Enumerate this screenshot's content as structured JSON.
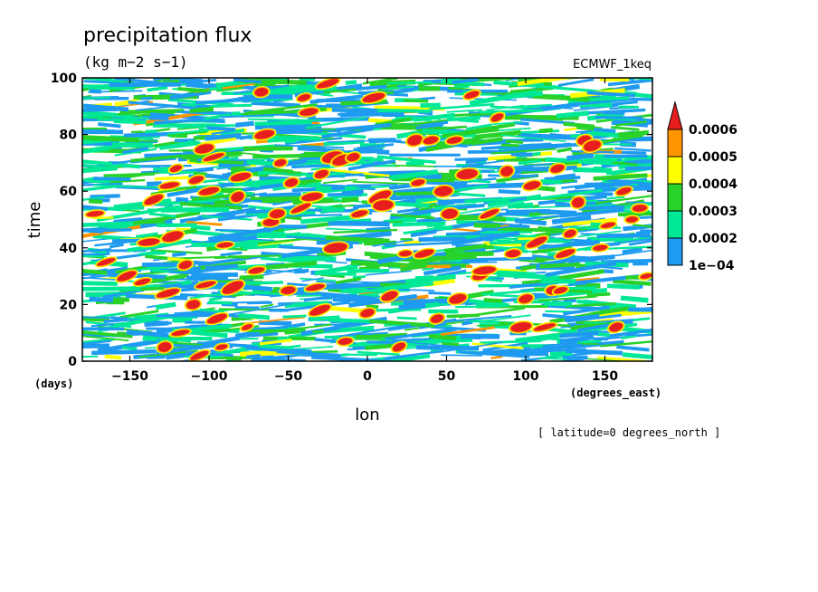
{
  "chart_data": {
    "type": "heatmap",
    "title": "precipitation flux",
    "subtitle": "(kg m−2 s−1)",
    "source_label": "ECMWF_1keq",
    "xlabel": "lon",
    "ylabel": "time",
    "x_unit_label": "(degrees_east)",
    "y_unit_label": "(days)",
    "x_ticks": [
      -150,
      -100,
      -50,
      0,
      50,
      100,
      150
    ],
    "x_tick_labels": [
      "−150",
      "−100",
      "−50",
      "0",
      "50",
      "100",
      "150"
    ],
    "y_ticks": [
      0,
      20,
      40,
      60,
      80,
      100
    ],
    "y_tick_labels": [
      "0",
      "20",
      "40",
      "60",
      "80",
      "100"
    ],
    "xlim": [
      -180,
      180
    ],
    "ylim": [
      0,
      100
    ],
    "footnote": "[ latitude=0 degrees_north ]",
    "colorbar": {
      "levels": [
        0.0001,
        0.0002,
        0.0003,
        0.0004,
        0.0005,
        0.0006
      ],
      "labels": [
        "1e−04",
        "0.0002",
        "0.0003",
        "0.0004",
        "0.0005",
        "0.0006"
      ],
      "colors": [
        "#1e9bf0",
        "#00e896",
        "#28d228",
        "#ffff00",
        "#ff9600",
        "#e61e1e"
      ],
      "background": "#ffffff",
      "extend": "max"
    },
    "red_cells": [
      [
        -172,
        52
      ],
      [
        -165,
        35
      ],
      [
        -152,
        30
      ],
      [
        -142,
        28
      ],
      [
        -138,
        42
      ],
      [
        -135,
        57
      ],
      [
        -128,
        5
      ],
      [
        -126,
        24
      ],
      [
        -125,
        62
      ],
      [
        -123,
        44
      ],
      [
        -121,
        68
      ],
      [
        -118,
        10
      ],
      [
        -115,
        34
      ],
      [
        -110,
        20
      ],
      [
        -108,
        64
      ],
      [
        -106,
        2
      ],
      [
        -103,
        75
      ],
      [
        -102,
        27
      ],
      [
        -100,
        60
      ],
      [
        -97,
        72
      ],
      [
        -95,
        15
      ],
      [
        -92,
        5
      ],
      [
        -90,
        41
      ],
      [
        -85,
        26
      ],
      [
        -82,
        58
      ],
      [
        -80,
        65
      ],
      [
        -76,
        12
      ],
      [
        -70,
        32
      ],
      [
        -67,
        95
      ],
      [
        -65,
        80
      ],
      [
        -61,
        49
      ],
      [
        -57,
        52
      ],
      [
        -55,
        70
      ],
      [
        -50,
        25
      ],
      [
        -48,
        63
      ],
      [
        -42,
        54
      ],
      [
        -40,
        93
      ],
      [
        -37,
        88
      ],
      [
        -35,
        58
      ],
      [
        -33,
        26
      ],
      [
        -30,
        18
      ],
      [
        -29,
        66
      ],
      [
        -25,
        98
      ],
      [
        -22,
        72
      ],
      [
        -20,
        40
      ],
      [
        -16,
        71
      ],
      [
        -14,
        7
      ],
      [
        -9,
        72
      ],
      [
        -5,
        52
      ],
      [
        0,
        17
      ],
      [
        4,
        93
      ],
      [
        8,
        58
      ],
      [
        10,
        55
      ],
      [
        14,
        23
      ],
      [
        20,
        5
      ],
      [
        24,
        38
      ],
      [
        30,
        78
      ],
      [
        32,
        63
      ],
      [
        36,
        38
      ],
      [
        40,
        78
      ],
      [
        44,
        15
      ],
      [
        48,
        60
      ],
      [
        52,
        52
      ],
      [
        55,
        78
      ],
      [
        57,
        22
      ],
      [
        63,
        66
      ],
      [
        66,
        94
      ],
      [
        71,
        30
      ],
      [
        74,
        32
      ],
      [
        77,
        52
      ],
      [
        82,
        86
      ],
      [
        88,
        67
      ],
      [
        92,
        38
      ],
      [
        97,
        12
      ],
      [
        100,
        22
      ],
      [
        104,
        62
      ],
      [
        107,
        42
      ],
      [
        112,
        12
      ],
      [
        117,
        25
      ],
      [
        120,
        68
      ],
      [
        122,
        25
      ],
      [
        125,
        38
      ],
      [
        128,
        45
      ],
      [
        133,
        56
      ],
      [
        137,
        78
      ],
      [
        142,
        76
      ],
      [
        147,
        40
      ],
      [
        152,
        48
      ],
      [
        157,
        12
      ],
      [
        162,
        60
      ],
      [
        167,
        50
      ],
      [
        172,
        54
      ],
      [
        176,
        30
      ]
    ]
  }
}
